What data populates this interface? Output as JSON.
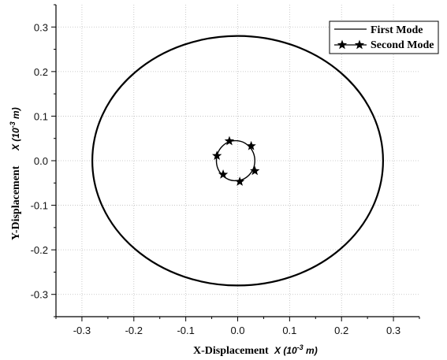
{
  "chart_data": {
    "type": "line",
    "xlabel": "X-Displacement",
    "xlabel_unit": "X (10",
    "xlabel_unit_exp": "-3",
    "xlabel_unit_tail": " m)",
    "ylabel": "Y-Displacement",
    "ylabel_unit": "X (10",
    "ylabel_unit_exp": "-3",
    "ylabel_unit_tail": " m)",
    "xlim": [
      -0.35,
      0.35
    ],
    "ylim": [
      -0.35,
      0.35
    ],
    "xticks": [
      -0.3,
      -0.2,
      -0.1,
      0.0,
      0.1,
      0.2,
      0.3
    ],
    "xtick_labels": [
      "-0.3",
      "-0.2",
      "-0.1",
      "0.0",
      "0.1",
      "0.2",
      "0.3"
    ],
    "yticks": [
      -0.3,
      -0.2,
      -0.1,
      0.0,
      0.1,
      0.2,
      0.3
    ],
    "ytick_labels": [
      "-0.3",
      "-0.2",
      "-0.1",
      "0.0",
      "0.1",
      "0.2",
      "0.3"
    ],
    "grid": true,
    "legend_position": "top-right",
    "series": [
      {
        "name": "First Mode",
        "shape": "ellipse",
        "center": [
          0.0,
          0.0
        ],
        "x_radius": 0.28,
        "y_radius": 0.28,
        "color": "#000000",
        "marker": "none"
      },
      {
        "name": "Second Mode",
        "shape": "ellipse",
        "center": [
          -0.004,
          0.0
        ],
        "x_radius": 0.037,
        "y_radius": 0.045,
        "color": "#000000",
        "marker": "star",
        "marker_points": [
          {
            "x": -0.016,
            "y": 0.044
          },
          {
            "x": 0.026,
            "y": 0.033
          },
          {
            "x": 0.033,
            "y": -0.023
          },
          {
            "x": 0.004,
            "y": -0.047
          },
          {
            "x": -0.028,
            "y": -0.031
          },
          {
            "x": -0.04,
            "y": 0.011
          }
        ]
      }
    ]
  }
}
